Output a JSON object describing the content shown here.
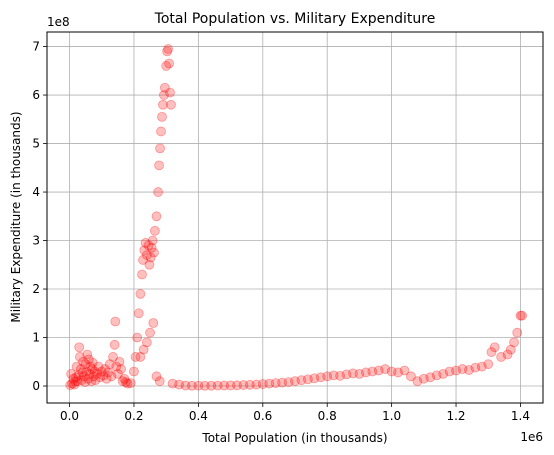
{
  "chart_data": {
    "type": "scatter",
    "title": "Total Population vs. Military Expenditure",
    "xlabel": "Total Population (in thousands)",
    "ylabel": "Military Expenditure (in thousands)",
    "x_offset_label": "1e6",
    "y_offset_label": "1e8",
    "xlim": [
      -70000,
      1470000
    ],
    "ylim": [
      -35000000,
      730000000
    ],
    "xticks": [
      0,
      200000,
      400000,
      600000,
      800000,
      1000000,
      1200000,
      1400000
    ],
    "xtick_labels": [
      "0.0",
      "0.2",
      "0.4",
      "0.6",
      "0.8",
      "1.0",
      "1.2",
      "1.4"
    ],
    "yticks": [
      0,
      100000000,
      200000000,
      300000000,
      400000000,
      500000000,
      600000000,
      700000000
    ],
    "ytick_labels": [
      "0",
      "1",
      "2",
      "3",
      "4",
      "5",
      "6",
      "7"
    ],
    "grid": true,
    "marker_color": "#ff0000",
    "marker_alpha": 0.25,
    "series": [
      {
        "points": [
          [
            2000,
            2000000
          ],
          [
            5000,
            25000000
          ],
          [
            8000,
            5000000
          ],
          [
            12000,
            15000000
          ],
          [
            15000,
            3000000
          ],
          [
            18000,
            9000000
          ],
          [
            20000,
            18000000
          ],
          [
            22000,
            40000000
          ],
          [
            25000,
            10000000
          ],
          [
            28000,
            22000000
          ],
          [
            30000,
            80000000
          ],
          [
            32000,
            60000000
          ],
          [
            35000,
            35000000
          ],
          [
            38000,
            12000000
          ],
          [
            40000,
            28000000
          ],
          [
            42000,
            50000000
          ],
          [
            45000,
            20000000
          ],
          [
            48000,
            8000000
          ],
          [
            50000,
            45000000
          ],
          [
            52000,
            30000000
          ],
          [
            55000,
            65000000
          ],
          [
            58000,
            15000000
          ],
          [
            60000,
            55000000
          ],
          [
            62000,
            25000000
          ],
          [
            65000,
            40000000
          ],
          [
            68000,
            10000000
          ],
          [
            70000,
            35000000
          ],
          [
            72000,
            48000000
          ],
          [
            75000,
            20000000
          ],
          [
            78000,
            30000000
          ],
          [
            80000,
            12000000
          ],
          [
            85000,
            25000000
          ],
          [
            90000,
            40000000
          ],
          [
            95000,
            18000000
          ],
          [
            100000,
            30000000
          ],
          [
            105000,
            22000000
          ],
          [
            110000,
            35000000
          ],
          [
            115000,
            15000000
          ],
          [
            120000,
            28000000
          ],
          [
            125000,
            45000000
          ],
          [
            130000,
            20000000
          ],
          [
            135000,
            60000000
          ],
          [
            140000,
            85000000
          ],
          [
            142000,
            133000000
          ],
          [
            145000,
            40000000
          ],
          [
            150000,
            25000000
          ],
          [
            155000,
            50000000
          ],
          [
            160000,
            35000000
          ],
          [
            165000,
            10000000
          ],
          [
            170000,
            15000000
          ],
          [
            175000,
            8000000
          ],
          [
            180000,
            5000000
          ],
          [
            190000,
            6000000
          ],
          [
            200000,
            30000000
          ],
          [
            205000,
            60000000
          ],
          [
            210000,
            100000000
          ],
          [
            215000,
            150000000
          ],
          [
            220000,
            190000000
          ],
          [
            225000,
            230000000
          ],
          [
            228000,
            260000000
          ],
          [
            232000,
            280000000
          ],
          [
            236000,
            295000000
          ],
          [
            240000,
            270000000
          ],
          [
            245000,
            290000000
          ],
          [
            248000,
            250000000
          ],
          [
            252000,
            265000000
          ],
          [
            255000,
            285000000
          ],
          [
            258000,
            300000000
          ],
          [
            262000,
            275000000
          ],
          [
            265000,
            320000000
          ],
          [
            270000,
            350000000
          ],
          [
            275000,
            400000000
          ],
          [
            278000,
            455000000
          ],
          [
            281000,
            490000000
          ],
          [
            284000,
            525000000
          ],
          [
            287000,
            555000000
          ],
          [
            290000,
            580000000
          ],
          [
            293000,
            600000000
          ],
          [
            296000,
            615000000
          ],
          [
            300000,
            660000000
          ],
          [
            303000,
            690000000
          ],
          [
            306000,
            695000000
          ],
          [
            309000,
            665000000
          ],
          [
            312000,
            605000000
          ],
          [
            315000,
            580000000
          ],
          [
            260000,
            130000000
          ],
          [
            250000,
            110000000
          ],
          [
            240000,
            90000000
          ],
          [
            230000,
            75000000
          ],
          [
            220000,
            60000000
          ],
          [
            270000,
            20000000
          ],
          [
            280000,
            10000000
          ],
          [
            320000,
            5000000
          ],
          [
            340000,
            3000000
          ],
          [
            360000,
            1000000
          ],
          [
            380000,
            500000
          ],
          [
            400000,
            800000
          ],
          [
            420000,
            500000
          ],
          [
            440000,
            600000
          ],
          [
            460000,
            900000
          ],
          [
            480000,
            1000000
          ],
          [
            500000,
            1200000
          ],
          [
            520000,
            1500000
          ],
          [
            540000,
            2000000
          ],
          [
            560000,
            2500000
          ],
          [
            580000,
            3000000
          ],
          [
            600000,
            4000000
          ],
          [
            620000,
            5000000
          ],
          [
            640000,
            6000000
          ],
          [
            660000,
            7000000
          ],
          [
            680000,
            8000000
          ],
          [
            700000,
            10000000
          ],
          [
            720000,
            12000000
          ],
          [
            740000,
            14000000
          ],
          [
            760000,
            16000000
          ],
          [
            780000,
            18000000
          ],
          [
            800000,
            20000000
          ],
          [
            820000,
            22000000
          ],
          [
            840000,
            21000000
          ],
          [
            860000,
            24000000
          ],
          [
            880000,
            26000000
          ],
          [
            900000,
            25000000
          ],
          [
            920000,
            28000000
          ],
          [
            940000,
            30000000
          ],
          [
            960000,
            32000000
          ],
          [
            980000,
            35000000
          ],
          [
            1000000,
            30000000
          ],
          [
            1020000,
            28000000
          ],
          [
            1040000,
            32000000
          ],
          [
            1060000,
            20000000
          ],
          [
            1080000,
            10000000
          ],
          [
            1100000,
            15000000
          ],
          [
            1120000,
            18000000
          ],
          [
            1140000,
            22000000
          ],
          [
            1160000,
            25000000
          ],
          [
            1180000,
            30000000
          ],
          [
            1200000,
            32000000
          ],
          [
            1220000,
            35000000
          ],
          [
            1240000,
            33000000
          ],
          [
            1260000,
            38000000
          ],
          [
            1280000,
            40000000
          ],
          [
            1300000,
            45000000
          ],
          [
            1310000,
            70000000
          ],
          [
            1320000,
            80000000
          ],
          [
            1340000,
            60000000
          ],
          [
            1360000,
            65000000
          ],
          [
            1370000,
            75000000
          ],
          [
            1380000,
            90000000
          ],
          [
            1390000,
            110000000
          ],
          [
            1400000,
            145000000
          ],
          [
            1405000,
            145000000
          ]
        ]
      }
    ]
  }
}
